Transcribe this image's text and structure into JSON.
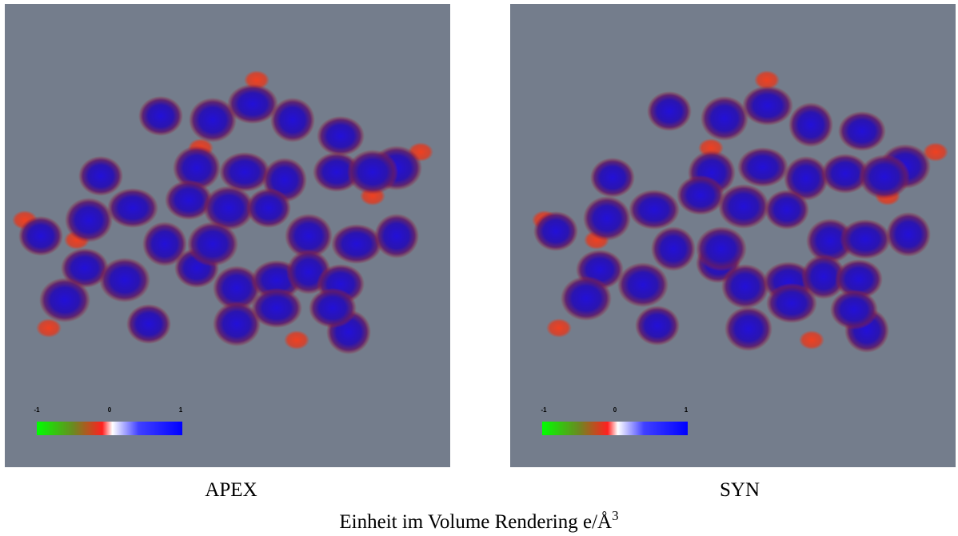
{
  "panels": [
    {
      "label": "APEX",
      "colorbar_ticks": [
        "-1",
        "0",
        "1"
      ]
    },
    {
      "label": "SYN",
      "colorbar_ticks": [
        "-1",
        "0",
        "1"
      ]
    }
  ],
  "caption": {
    "text": "Einheit im Volume Rendering e/Å",
    "superscript": "3"
  }
}
